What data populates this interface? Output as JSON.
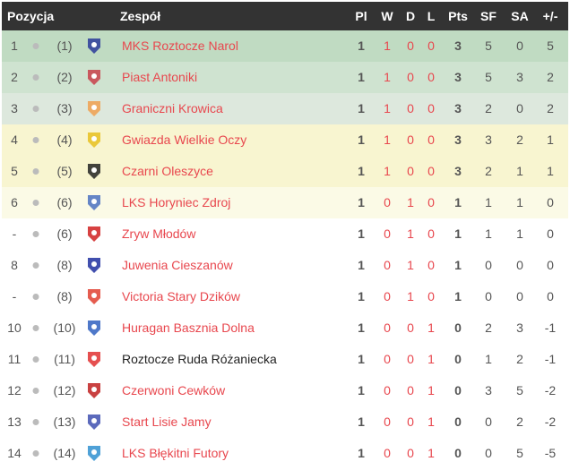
{
  "header": {
    "pos": "Pozycja",
    "team": "Zespół",
    "pl": "Pl",
    "w": "W",
    "d": "D",
    "l": "L",
    "pts": "Pts",
    "sf": "SF",
    "sa": "SA",
    "diff": "+/-"
  },
  "colors": {
    "header_bg": "#333333",
    "link": "#e8474e",
    "row_bg": [
      "#c0dbc2",
      "#cfe3d0",
      "#dde8dd",
      "#f8f5d0",
      "#f8f5d0",
      "#fbfae6",
      "#ffffff",
      "#ffffff",
      "#ffffff",
      "#ffffff",
      "#ffffff",
      "#ffffff",
      "#ffffff",
      "#ffffff"
    ]
  },
  "rows": [
    {
      "pos": "1",
      "prev": "(1)",
      "team": "MKS Roztocze Narol",
      "pl": "1",
      "w": "1",
      "d": "0",
      "l": "0",
      "pts": "3",
      "sf": "5",
      "sa": "0",
      "diff": "5",
      "logo": "#2a3a9a",
      "link": true
    },
    {
      "pos": "2",
      "prev": "(2)",
      "team": "Piast Antoniki",
      "pl": "1",
      "w": "1",
      "d": "0",
      "l": "0",
      "pts": "3",
      "sf": "5",
      "sa": "3",
      "diff": "2",
      "logo": "#c8404a",
      "link": true
    },
    {
      "pos": "3",
      "prev": "(3)",
      "team": "Graniczni Krowica",
      "pl": "1",
      "w": "1",
      "d": "0",
      "l": "0",
      "pts": "3",
      "sf": "2",
      "sa": "0",
      "diff": "2",
      "logo": "#f0a050",
      "link": true
    },
    {
      "pos": "4",
      "prev": "(4)",
      "team": "Gwiazda Wielkie Oczy",
      "pl": "1",
      "w": "1",
      "d": "0",
      "l": "0",
      "pts": "3",
      "sf": "3",
      "sa": "2",
      "diff": "1",
      "logo": "#e8c020",
      "link": true
    },
    {
      "pos": "5",
      "prev": "(5)",
      "team": "Czarni Oleszyce",
      "pl": "1",
      "w": "1",
      "d": "0",
      "l": "0",
      "pts": "3",
      "sf": "2",
      "sa": "1",
      "diff": "1",
      "logo": "#222222",
      "link": true
    },
    {
      "pos": "6",
      "prev": "(6)",
      "team": "LKS Horyniec Zdroj",
      "pl": "1",
      "w": "0",
      "d": "1",
      "l": "0",
      "pts": "1",
      "sf": "1",
      "sa": "1",
      "diff": "0",
      "logo": "#4a70c0",
      "link": true
    },
    {
      "pos": "-",
      "prev": "(6)",
      "team": "Zryw Młodów",
      "pl": "1",
      "w": "0",
      "d": "1",
      "l": "0",
      "pts": "1",
      "sf": "1",
      "sa": "1",
      "diff": "0",
      "logo": "#d02020",
      "link": true
    },
    {
      "pos": "8",
      "prev": "(8)",
      "team": "Juwenia Cieszanów",
      "pl": "1",
      "w": "0",
      "d": "1",
      "l": "0",
      "pts": "1",
      "sf": "0",
      "sa": "0",
      "diff": "0",
      "logo": "#2030a0",
      "link": true
    },
    {
      "pos": "-",
      "prev": "(8)",
      "team": "Victoria Stary Dzików",
      "pl": "1",
      "w": "0",
      "d": "1",
      "l": "0",
      "pts": "1",
      "sf": "0",
      "sa": "0",
      "diff": "0",
      "logo": "#e04030",
      "link": true
    },
    {
      "pos": "10",
      "prev": "(10)",
      "team": "Huragan Basznia Dolna",
      "pl": "1",
      "w": "0",
      "d": "0",
      "l": "1",
      "pts": "0",
      "sf": "2",
      "sa": "3",
      "diff": "-1",
      "logo": "#3060c0",
      "link": true
    },
    {
      "pos": "11",
      "prev": "(11)",
      "team": "Roztocze Ruda Różaniecka",
      "pl": "1",
      "w": "0",
      "d": "0",
      "l": "1",
      "pts": "0",
      "sf": "1",
      "sa": "2",
      "diff": "-1",
      "logo": "#e03030",
      "link": false
    },
    {
      "pos": "12",
      "prev": "(12)",
      "team": "Czerwoni Cewków",
      "pl": "1",
      "w": "0",
      "d": "0",
      "l": "1",
      "pts": "0",
      "sf": "3",
      "sa": "5",
      "diff": "-2",
      "logo": "#c02020",
      "link": true
    },
    {
      "pos": "13",
      "prev": "(13)",
      "team": "Start Lisie Jamy",
      "pl": "1",
      "w": "0",
      "d": "0",
      "l": "1",
      "pts": "0",
      "sf": "0",
      "sa": "2",
      "diff": "-2",
      "logo": "#4050b0",
      "link": true
    },
    {
      "pos": "14",
      "prev": "(14)",
      "team": "LKS Błękitni Futory",
      "pl": "1",
      "w": "0",
      "d": "0",
      "l": "1",
      "pts": "0",
      "sf": "0",
      "sa": "5",
      "diff": "-5",
      "logo": "#3090d0",
      "link": true
    }
  ]
}
